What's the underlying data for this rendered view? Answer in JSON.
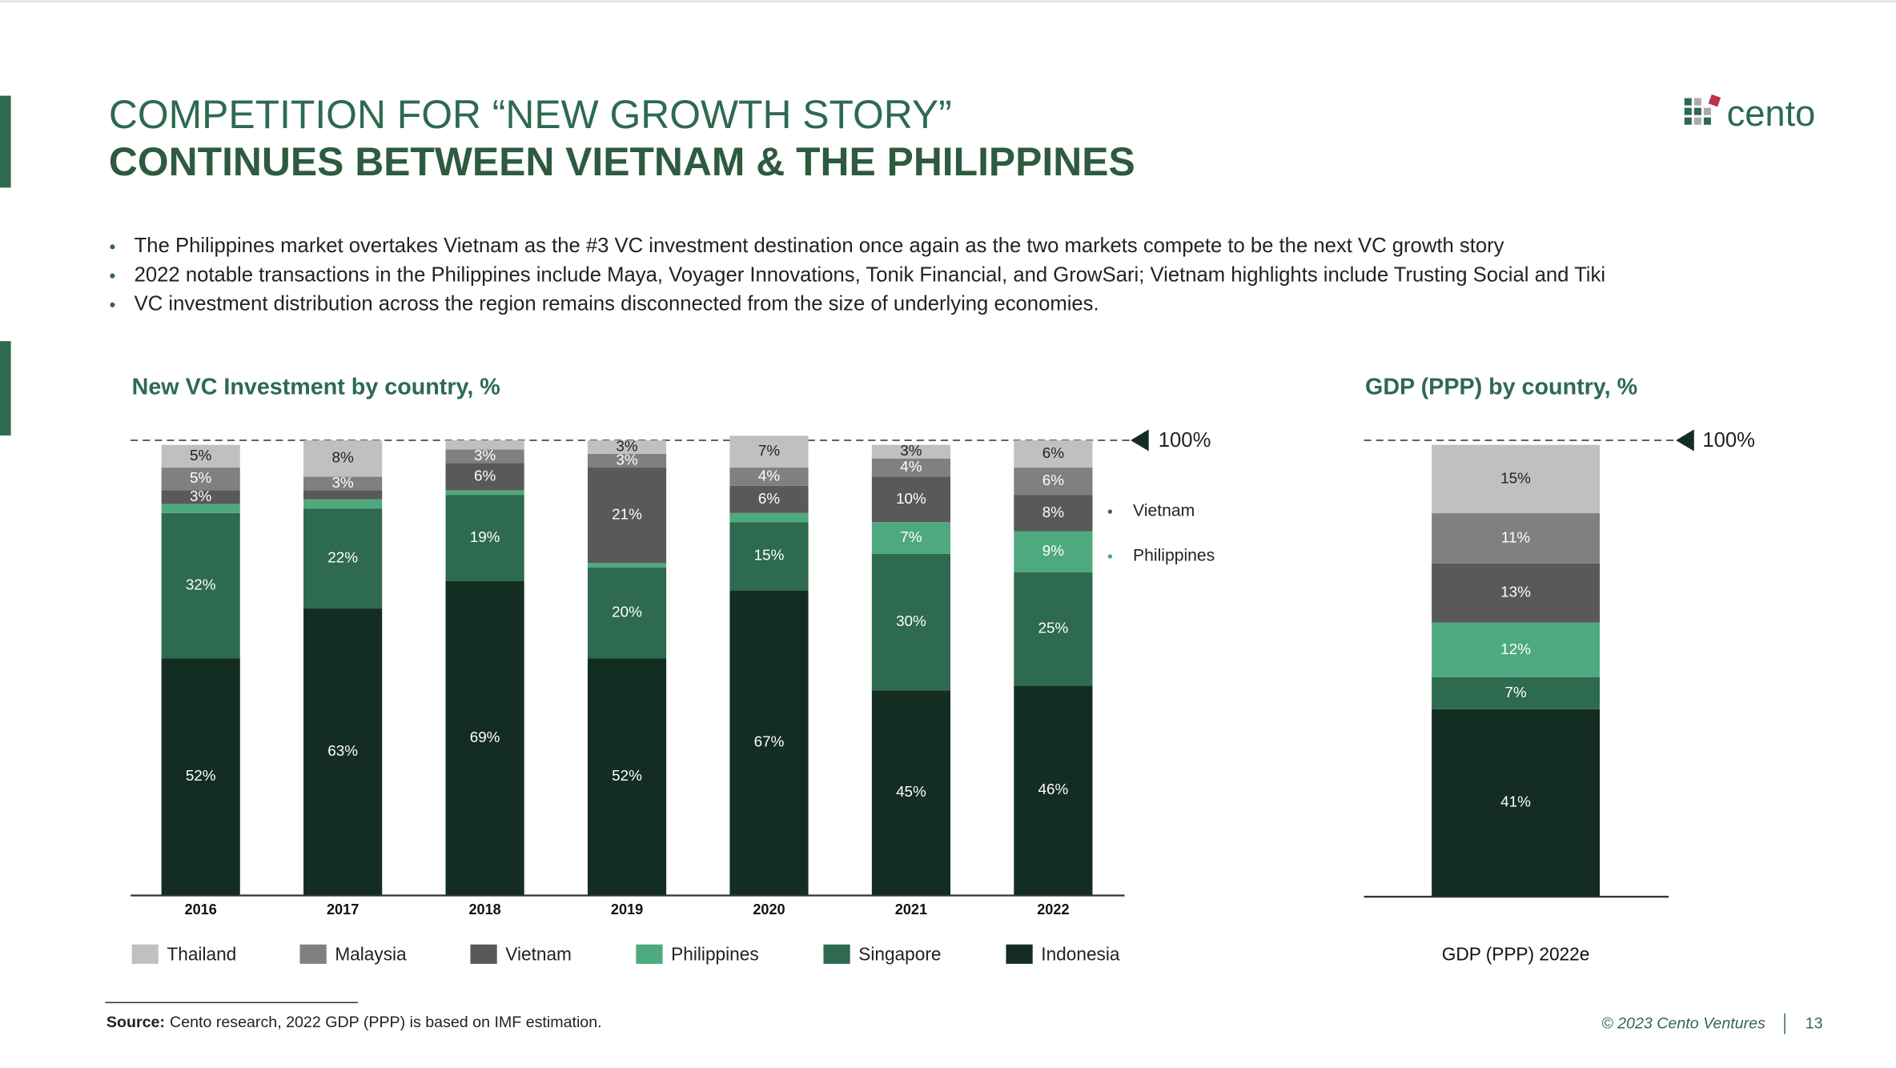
{
  "title": [
    "COMPETITION FOR “NEW GROWTH STORY”",
    "CONTINUES BETWEEN VIETNAM & THE PHILIPPINES"
  ],
  "logo": "cento",
  "bullets": [
    "The Philippines market overtakes Vietnam as the #3 VC investment destination once again as the two markets compete to be the next VC growth story",
    "2022 notable transactions in the Philippines include Maya, Voyager Innovations, Tonik Financial, and GrowSari; Vietnam highlights include Trusting Social and Tiki",
    "VC investment distribution across the region remains disconnected from the size of underlying economies."
  ],
  "source": {
    "label": "Source:",
    "text": "Cento research, 2022 GDP (PPP) is based on IMF estimation."
  },
  "footer": {
    "copyright": "© 2023 Cento Ventures",
    "page": "13"
  },
  "chart_data": [
    {
      "type": "stacked-bar",
      "title": "New VC Investment by country, %",
      "categories": [
        "2016",
        "2017",
        "2018",
        "2019",
        "2020",
        "2021",
        "2022"
      ],
      "ylim": [
        0,
        100
      ],
      "ref_line": {
        "value": 100,
        "label": "100%"
      },
      "side_labels": [
        "Vietnam",
        "Philippines"
      ],
      "series": [
        {
          "name": "Indonesia",
          "color": "#142d22",
          "values": [
            52,
            63,
            69,
            52,
            67,
            45,
            46
          ],
          "value_labels": [
            "52%",
            "63%",
            "69%",
            "52%",
            "67%",
            "45%",
            "46%"
          ]
        },
        {
          "name": "Singapore",
          "color": "#2d6a4f",
          "values": [
            32,
            22,
            19,
            20,
            15,
            30,
            25
          ],
          "value_labels": [
            "32%",
            "22%",
            "19%",
            "20%",
            "15%",
            "30%",
            "25%"
          ]
        },
        {
          "name": "Philippines",
          "color": "#4fa97f",
          "values": [
            2,
            2,
            1,
            1,
            2,
            7,
            9
          ],
          "value_labels": [
            null,
            null,
            null,
            null,
            null,
            "7%",
            "9%"
          ]
        },
        {
          "name": "Vietnam",
          "color": "#595959",
          "values": [
            3,
            2,
            6,
            21,
            6,
            10,
            8
          ],
          "value_labels": [
            "3%",
            null,
            "6%",
            "21%",
            "6%",
            "10%",
            "8%"
          ]
        },
        {
          "name": "Malaysia",
          "color": "#808080",
          "values": [
            5,
            3,
            3,
            3,
            4,
            4,
            6
          ],
          "value_labels": [
            "5%",
            "3%",
            "3%",
            "3%",
            "4%",
            "4%",
            "6%"
          ]
        },
        {
          "name": "Thailand",
          "color": "#c0c0c0",
          "values": [
            5,
            8,
            2,
            3,
            7,
            3,
            6
          ],
          "value_labels": [
            "5%",
            "8%",
            null,
            "3%",
            "7%",
            "3%",
            "6%"
          ]
        }
      ]
    },
    {
      "type": "stacked-bar",
      "title": "GDP (PPP) by country, %",
      "categories": [
        "GDP (PPP) 2022e"
      ],
      "ylim": [
        0,
        100
      ],
      "ref_line": {
        "value": 100,
        "label": "100%"
      },
      "series": [
        {
          "color": "#142d22",
          "values": [
            41
          ],
          "value_labels": [
            "41%"
          ]
        },
        {
          "color": "#2d6a4f",
          "values": [
            7
          ],
          "value_labels": [
            "7%"
          ]
        },
        {
          "color": "#4fa97f",
          "values": [
            12
          ],
          "value_labels": [
            "12%"
          ]
        },
        {
          "color": "#595959",
          "values": [
            13
          ],
          "value_labels": [
            "13%"
          ]
        },
        {
          "color": "#808080",
          "values": [
            11
          ],
          "value_labels": [
            "11%"
          ]
        },
        {
          "color": "#c0c0c0",
          "values": [
            15
          ],
          "value_labels": [
            "15%"
          ]
        }
      ]
    }
  ]
}
